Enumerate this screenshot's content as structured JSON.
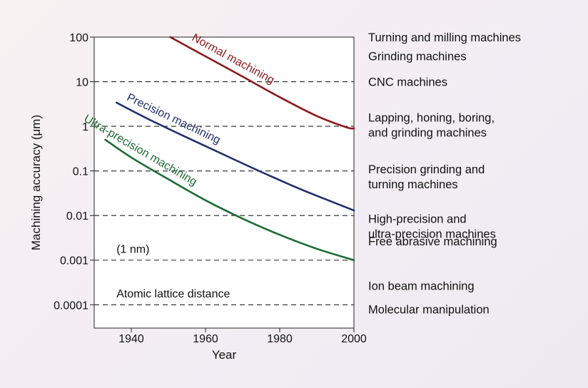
{
  "chart_data": {
    "type": "line",
    "xlabel": "Year",
    "ylabel": "Machining accuracy (μm)",
    "xlim": [
      1930,
      2000
    ],
    "ylim": [
      3e-05,
      100
    ],
    "yscale": "log",
    "x_ticks": [
      1940,
      1960,
      1980,
      2000
    ],
    "x_tick_labels": [
      "1940",
      "1960",
      "1980",
      "2000"
    ],
    "y_ticks": [
      100,
      10,
      1,
      0.1,
      0.01,
      0.001,
      0.0001
    ],
    "y_tick_labels": [
      "100",
      "10",
      "1",
      "0.1",
      "0.01",
      "0.001",
      "0.0001"
    ],
    "grid": "dashed horizontal lines at 10, 1, 0.1, 0.01, 0.001, 0.0001",
    "series": [
      {
        "name": "Normal machining",
        "color": "#8b1a1a",
        "x": [
          1950.5,
          1960,
          1970,
          1980,
          1990,
          1998,
          2000
        ],
        "y": [
          100,
          37,
          13,
          4.5,
          1.7,
          0.95,
          0.9
        ]
      },
      {
        "name": "Precision machining",
        "color": "#1f2f6b",
        "x": [
          1936,
          1945,
          1955,
          1965,
          1975,
          1985,
          1995,
          2000
        ],
        "y": [
          3.4,
          1.4,
          0.56,
          0.23,
          0.095,
          0.041,
          0.019,
          0.013
        ]
      },
      {
        "name": "Ultra-precision machining",
        "color": "#1e6b35",
        "x": [
          1933,
          1940,
          1950,
          1960,
          1970,
          1980,
          1990,
          2000
        ],
        "y": [
          0.5,
          0.2,
          0.065,
          0.022,
          0.0085,
          0.0037,
          0.0018,
          0.001
        ]
      }
    ],
    "annotations": [
      {
        "text": "(1 nm)",
        "x": 1936,
        "y": 0.00145
      },
      {
        "text": "Atomic lattice distance",
        "x": 1936,
        "y": 0.000145
      }
    ],
    "machine_labels": [
      {
        "lines": [
          "Turning and milling machines"
        ],
        "y": 100
      },
      {
        "lines": [
          "Grinding machines"
        ],
        "y": 38
      },
      {
        "lines": [
          "CNC machines"
        ],
        "y": 10
      },
      {
        "lines": [
          "Lapping, honing, boring,",
          "and grinding machines"
        ],
        "y": 1.6
      },
      {
        "lines": [
          "Precision grinding and",
          "turning machines"
        ],
        "y": 0.11
      },
      {
        "lines": [
          "High-precision and",
          "ultra-precision machines"
        ],
        "y": 0.0085
      },
      {
        "lines": [
          "Free abrasive machining"
        ],
        "y": 0.0027
      },
      {
        "lines": [
          "Ion beam machining"
        ],
        "y": 0.00027
      },
      {
        "lines": [
          "Molecular manipulation"
        ],
        "y": 8e-05
      }
    ]
  }
}
